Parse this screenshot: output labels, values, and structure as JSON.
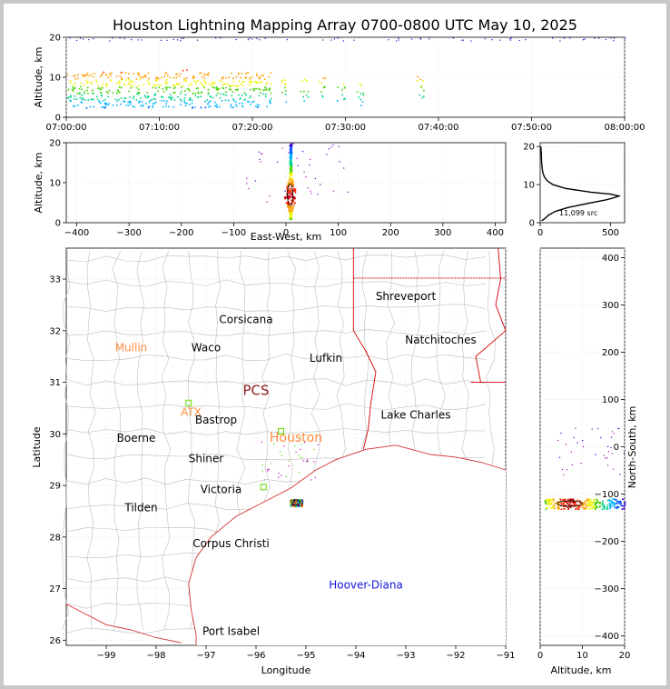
{
  "title": "Houston Lightning Mapping Array 0700-0800 UTC May 10, 2025",
  "colors": {
    "background": "#ffffff",
    "page": "#c8c8c8",
    "state_lines": "#d40000",
    "county_lines": "#bdbdbd",
    "coast": "#d43030",
    "orange_label": "#ff8c3c",
    "blue_label": "#1414e0",
    "dark_red_label": "#8b1a1a",
    "station_marker": "#66dd00",
    "histogram_line": "#000000",
    "source_palette": [
      "#3a00c8",
      "#0050ff",
      "#00b4ff",
      "#00d28c",
      "#46d200",
      "#f0f000",
      "#ffa000",
      "#ff2800",
      "#c80000"
    ]
  },
  "chart_data": [
    {
      "id": "time_altitude",
      "type": "scatter",
      "title": "",
      "xlabel": "",
      "ylabel": "Altitude, km",
      "xlim": [
        "07:00:00",
        "08:00:00"
      ],
      "ylim": [
        0,
        20
      ],
      "xticks": [
        "07:00:00",
        "07:10:00",
        "07:20:00",
        "07:30:00",
        "07:40:00",
        "07:50:00",
        "08:00:00"
      ],
      "yticks": [
        "0",
        "10",
        "20"
      ],
      "grid": true,
      "series": [
        {
          "time_minutes": [
            0.5,
            1.5,
            2.5,
            3.5,
            4.5,
            5.5,
            6.5,
            7.5,
            8.5,
            9.5,
            10.5,
            11.5,
            12.5,
            13.5,
            14.5,
            15.5,
            16.5,
            17.5,
            18.5,
            19.5,
            20.5,
            21.5,
            23.5,
            25.5,
            27.5,
            29.5,
            31.5,
            38.0
          ],
          "altitude_km": [
            7,
            7,
            7,
            7,
            7,
            7,
            7.5,
            7,
            7,
            7,
            7,
            7,
            7.5,
            7,
            7,
            7,
            7,
            7,
            7,
            7,
            7,
            7,
            7,
            7,
            7,
            6.5,
            6,
            7.5
          ]
        }
      ]
    },
    {
      "id": "east_west_altitude",
      "type": "scatter",
      "title": "",
      "xlabel": "East-West, km",
      "ylabel": "Altitude, km",
      "xlim": [
        -420,
        420
      ],
      "ylim": [
        0,
        20
      ],
      "xticks": [
        "−400",
        "−300",
        "−200",
        "−100",
        "0",
        "100",
        "200",
        "300",
        "400"
      ],
      "yticks": [
        "0",
        "10",
        "20"
      ],
      "grid": true,
      "series": [
        {
          "east_west_km": [
            8,
            8,
            8,
            8,
            8,
            8
          ],
          "altitude_km": [
            2,
            5,
            7,
            10,
            15,
            19
          ]
        }
      ]
    },
    {
      "id": "altitude_histogram",
      "type": "line",
      "title": "",
      "xlabel": "",
      "ylabel": "",
      "xlim": [
        0,
        600
      ],
      "ylim": [
        0,
        21
      ],
      "xticks": [
        "0",
        "500"
      ],
      "yticks": [
        "0",
        "10",
        "20"
      ],
      "annotation": "11,099 src",
      "series": [
        {
          "altitude_km": [
            0.5,
            1,
            2,
            3,
            4,
            5,
            6,
            6.5,
            7,
            7.5,
            8,
            9,
            10,
            11,
            12,
            13,
            14,
            16,
            18,
            20
          ],
          "sources": [
            10,
            30,
            60,
            110,
            200,
            330,
            470,
            520,
            560,
            500,
            360,
            180,
            90,
            50,
            30,
            20,
            15,
            10,
            8,
            5
          ]
        }
      ]
    },
    {
      "id": "plan_view",
      "type": "scatter",
      "title": "",
      "xlabel": "Longitude",
      "ylabel": "Latitude",
      "xlim": [
        -99.8,
        -91.0
      ],
      "ylim": [
        25.9,
        33.6
      ],
      "xticks": [
        "−99",
        "−98",
        "−97",
        "−96",
        "−95",
        "−94",
        "−93",
        "−92",
        "−91"
      ],
      "yticks": [
        "26",
        "27",
        "28",
        "29",
        "30",
        "31",
        "32",
        "33"
      ],
      "grid": true,
      "series": [
        {
          "lon": [
            -95.2,
            -95.25,
            -95.15,
            -95.3,
            -95.1
          ],
          "lat": [
            28.67,
            28.7,
            28.65,
            28.68,
            28.66
          ]
        }
      ]
    },
    {
      "id": "north_south_altitude",
      "type": "scatter",
      "title": "",
      "xlabel": "Altitude, km",
      "ylabel": "North-South, km",
      "xlim": [
        0,
        20
      ],
      "ylim": [
        -420,
        420
      ],
      "xticks": [
        "0",
        "10",
        "20"
      ],
      "yticks": [
        "−400",
        "−300",
        "−200",
        "−100",
        "0",
        "100",
        "200",
        "300",
        "400"
      ],
      "grid": true,
      "series": [
        {
          "altitude_km": [
            2,
            5,
            7,
            9,
            12,
            16,
            19
          ],
          "north_south_km": [
            -120,
            -120,
            -120,
            -120,
            -120,
            -122,
            -118
          ]
        }
      ]
    }
  ],
  "map_labels": [
    {
      "text": "Shreveport",
      "lon": -93.0,
      "lat": 32.6,
      "color": "black"
    },
    {
      "text": "Corsicana",
      "lon": -96.2,
      "lat": 32.15,
      "color": "black"
    },
    {
      "text": "Natchitoches",
      "lon": -92.3,
      "lat": 31.75,
      "color": "black"
    },
    {
      "text": "Mullin",
      "lon": -98.5,
      "lat": 31.6,
      "color": "orange"
    },
    {
      "text": "Waco",
      "lon": -97.0,
      "lat": 31.6,
      "color": "black"
    },
    {
      "text": "Lufkin",
      "lon": -94.6,
      "lat": 31.4,
      "color": "black"
    },
    {
      "text": "PCS",
      "lon": -96.0,
      "lat": 30.75,
      "color": "darkred"
    },
    {
      "text": "ATX",
      "lon": -97.3,
      "lat": 30.35,
      "color": "orange"
    },
    {
      "text": "Bastrop",
      "lon": -96.8,
      "lat": 30.2,
      "color": "black"
    },
    {
      "text": "Lake Charles",
      "lon": -92.8,
      "lat": 30.3,
      "color": "black"
    },
    {
      "text": "Boerne",
      "lon": -98.4,
      "lat": 29.85,
      "color": "black"
    },
    {
      "text": "Houston",
      "lon": -95.2,
      "lat": 29.85,
      "color": "orange"
    },
    {
      "text": "Shiner",
      "lon": -97.0,
      "lat": 29.45,
      "color": "black"
    },
    {
      "text": "Victoria",
      "lon": -96.7,
      "lat": 28.85,
      "color": "black"
    },
    {
      "text": "Tilden",
      "lon": -98.3,
      "lat": 28.5,
      "color": "black"
    },
    {
      "text": "Corpus Christi",
      "lon": -96.5,
      "lat": 27.8,
      "color": "black"
    },
    {
      "text": "Hoover-Diana",
      "lon": -93.8,
      "lat": 27.0,
      "color": "blue"
    },
    {
      "text": "Port Isabel",
      "lon": -96.5,
      "lat": 26.1,
      "color": "black"
    }
  ],
  "stations": [
    {
      "lon": -97.35,
      "lat": 30.6
    },
    {
      "lon": -95.85,
      "lat": 28.97
    },
    {
      "lon": -95.5,
      "lat": 30.05
    }
  ]
}
